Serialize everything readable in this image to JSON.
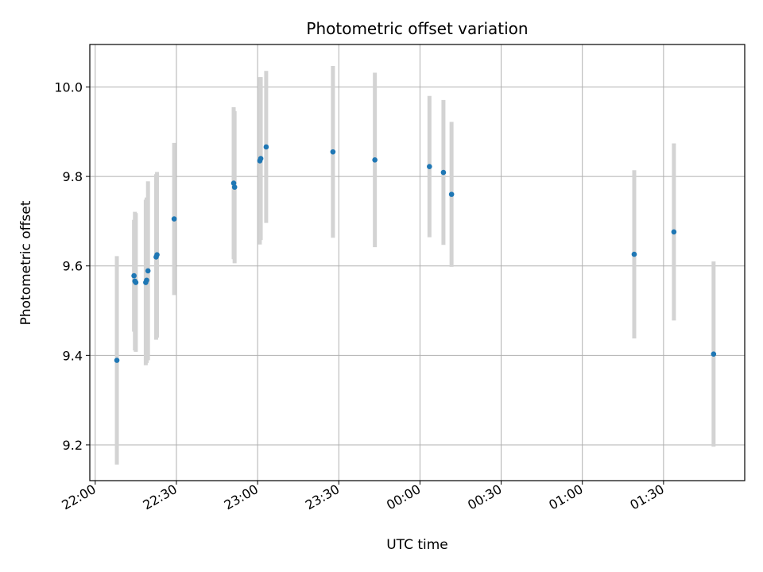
{
  "chart_data": {
    "type": "scatter",
    "title": "Photometric offset variation",
    "xlabel": "UTC time",
    "ylabel": "Photometric offset",
    "x_axis_kind": "time",
    "xlim": [
      "2000-01-01T21:58:00",
      "2000-01-02T02:00:00"
    ],
    "ylim": [
      9.12,
      10.095
    ],
    "x_ticks": [
      {
        "t": "2000-01-01T22:00:00",
        "label": "22:00"
      },
      {
        "t": "2000-01-01T22:30:00",
        "label": "22:30"
      },
      {
        "t": "2000-01-01T23:00:00",
        "label": "23:00"
      },
      {
        "t": "2000-01-01T23:30:00",
        "label": "23:30"
      },
      {
        "t": "2000-01-02T00:00:00",
        "label": "00:00"
      },
      {
        "t": "2000-01-02T00:30:00",
        "label": "00:30"
      },
      {
        "t": "2000-01-02T01:00:00",
        "label": "01:00"
      },
      {
        "t": "2000-01-02T01:30:00",
        "label": "01:30"
      }
    ],
    "y_ticks": [
      9.2,
      9.4,
      9.6,
      9.8,
      10.0
    ],
    "y_tick_labels": [
      "9.2",
      "9.4",
      "9.6",
      "9.8",
      "10.0"
    ],
    "grid": true,
    "point_color": "#1f77b4",
    "errorbar_color": "#d3d3d3",
    "points": [
      {
        "t": "2000-01-01T22:08:00",
        "y": 9.389,
        "err": 0.233
      },
      {
        "t": "2000-01-01T22:14:20",
        "y": 9.578,
        "err": 0.125
      },
      {
        "t": "2000-01-01T22:14:40",
        "y": 9.566,
        "err": 0.155
      },
      {
        "t": "2000-01-01T22:15:00",
        "y": 9.563,
        "err": 0.155
      },
      {
        "t": "2000-01-01T22:18:40",
        "y": 9.563,
        "err": 0.185
      },
      {
        "t": "2000-01-01T22:19:00",
        "y": 9.568,
        "err": 0.185
      },
      {
        "t": "2000-01-01T22:19:30",
        "y": 9.589,
        "err": 0.2
      },
      {
        "t": "2000-01-01T22:22:30",
        "y": 9.62,
        "err": 0.185
      },
      {
        "t": "2000-01-01T22:22:50",
        "y": 9.625,
        "err": 0.185
      },
      {
        "t": "2000-01-01T22:29:10",
        "y": 9.705,
        "err": 0.17
      },
      {
        "t": "2000-01-01T22:51:10",
        "y": 9.785,
        "err": 0.17
      },
      {
        "t": "2000-01-01T22:51:30",
        "y": 9.776,
        "err": 0.17
      },
      {
        "t": "2000-01-01T23:00:50",
        "y": 9.835,
        "err": 0.187
      },
      {
        "t": "2000-01-01T23:01:10",
        "y": 9.84,
        "err": 0.182
      },
      {
        "t": "2000-01-01T23:03:10",
        "y": 9.866,
        "err": 0.17
      },
      {
        "t": "2000-01-01T23:27:50",
        "y": 9.855,
        "err": 0.192
      },
      {
        "t": "2000-01-01T23:43:20",
        "y": 9.837,
        "err": 0.195
      },
      {
        "t": "2000-01-02T00:03:30",
        "y": 9.822,
        "err": 0.158
      },
      {
        "t": "2000-01-02T00:08:40",
        "y": 9.809,
        "err": 0.162
      },
      {
        "t": "2000-01-02T00:11:40",
        "y": 9.76,
        "err": 0.162
      },
      {
        "t": "2000-01-02T01:19:10",
        "y": 9.626,
        "err": 0.188
      },
      {
        "t": "2000-01-02T01:33:50",
        "y": 9.676,
        "err": 0.198
      },
      {
        "t": "2000-01-02T01:48:30",
        "y": 9.403,
        "err": 0.207
      }
    ]
  }
}
